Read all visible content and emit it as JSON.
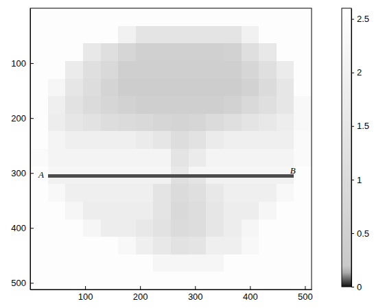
{
  "chart_data": {
    "type": "heatmap",
    "x_edges": [
      0,
      32,
      64,
      96,
      128,
      160,
      192,
      224,
      256,
      288,
      320,
      352,
      384,
      416,
      448,
      480,
      512
    ],
    "y_edges": [
      0,
      32,
      64,
      96,
      128,
      160,
      192,
      224,
      256,
      288,
      302,
      308,
      320,
      352,
      384,
      416,
      448,
      480,
      512
    ],
    "cells": [
      [
        2.5,
        2.5,
        2.5,
        2.5,
        2.5,
        2.5,
        2.5,
        2.5,
        2.5,
        2.5,
        2.5,
        2.5,
        2.5,
        2.5,
        2.5,
        2.5
      ],
      [
        2.5,
        2.5,
        2.5,
        2.5,
        2.5,
        2.0,
        1.4,
        1.4,
        1.4,
        1.4,
        1.4,
        1.4,
        2.0,
        2.5,
        2.5,
        2.5
      ],
      [
        2.5,
        2.5,
        2.5,
        1.6,
        1.2,
        0.8,
        0.5,
        0.5,
        0.5,
        0.5,
        0.5,
        0.6,
        1.2,
        1.6,
        2.5,
        2.5
      ],
      [
        2.5,
        2.5,
        1.7,
        1.2,
        0.9,
        0.45,
        0.45,
        0.45,
        0.45,
        0.45,
        0.45,
        0.45,
        0.8,
        1.2,
        1.7,
        2.5
      ],
      [
        2.5,
        2.2,
        1.5,
        1.1,
        0.7,
        0.4,
        0.4,
        0.4,
        0.4,
        0.4,
        0.4,
        0.4,
        0.6,
        1.0,
        1.5,
        2.5
      ],
      [
        2.5,
        1.9,
        1.3,
        1.0,
        0.8,
        0.6,
        0.45,
        0.45,
        0.45,
        0.45,
        0.45,
        0.6,
        0.9,
        1.2,
        1.5,
        2.3
      ],
      [
        2.5,
        1.8,
        1.5,
        1.3,
        1.1,
        1.0,
        0.9,
        0.8,
        0.7,
        0.8,
        1.0,
        1.2,
        1.4,
        1.6,
        1.8,
        2.3
      ],
      [
        2.5,
        2.1,
        1.9,
        1.9,
        1.9,
        1.9,
        1.7,
        1.5,
        1.1,
        1.3,
        1.7,
        1.9,
        1.9,
        1.9,
        1.9,
        2.4
      ],
      [
        2.4,
        2.1,
        2.1,
        2.1,
        2.1,
        2.1,
        2.1,
        2.1,
        1.4,
        1.7,
        2.1,
        2.1,
        2.1,
        2.1,
        2.1,
        2.4
      ],
      [
        2.5,
        2.2,
        2.2,
        2.2,
        2.2,
        2.2,
        2.2,
        2.2,
        1.6,
        2.2,
        2.2,
        2.2,
        2.2,
        2.2,
        2.2,
        2.5
      ],
      [
        2.5,
        0.05,
        0.05,
        0.05,
        0.05,
        0.05,
        0.05,
        0.05,
        0.05,
        0.05,
        0.05,
        0.05,
        0.05,
        0.05,
        0.05,
        2.5
      ],
      [
        2.5,
        2.0,
        2.0,
        2.0,
        2.0,
        2.0,
        2.0,
        2.0,
        1.2,
        1.4,
        2.0,
        2.0,
        2.0,
        2.0,
        2.0,
        2.5
      ],
      [
        2.5,
        2.3,
        1.9,
        1.9,
        1.9,
        1.9,
        1.9,
        1.4,
        1.0,
        1.2,
        1.6,
        1.9,
        1.9,
        1.9,
        2.3,
        2.5
      ],
      [
        2.5,
        2.5,
        2.2,
        1.8,
        1.8,
        1.8,
        1.8,
        1.4,
        0.9,
        1.1,
        1.5,
        1.8,
        1.8,
        2.2,
        2.5,
        2.5
      ],
      [
        2.5,
        2.5,
        2.5,
        2.2,
        1.8,
        1.8,
        1.6,
        1.3,
        1.0,
        1.1,
        1.5,
        1.8,
        2.2,
        2.5,
        2.5,
        2.5
      ],
      [
        2.5,
        2.5,
        2.5,
        2.5,
        2.5,
        2.3,
        1.9,
        1.6,
        1.3,
        1.4,
        1.9,
        1.9,
        2.3,
        2.5,
        2.5,
        2.5
      ],
      [
        2.5,
        2.5,
        2.5,
        2.5,
        2.5,
        2.5,
        2.5,
        2.2,
        2.2,
        2.2,
        2.2,
        2.5,
        2.5,
        2.5,
        2.5,
        2.5
      ],
      [
        2.5,
        2.5,
        2.5,
        2.5,
        2.5,
        2.5,
        2.5,
        2.5,
        2.5,
        2.5,
        2.5,
        2.5,
        2.5,
        2.5,
        2.5,
        2.5
      ]
    ],
    "xlim": [
      0,
      512
    ],
    "ylim": [
      0,
      512
    ],
    "xticks": [
      100,
      200,
      300,
      400,
      500
    ],
    "yticks": [
      100,
      200,
      300,
      400,
      500
    ],
    "colorbar": {
      "range": [
        0,
        2.6
      ],
      "ticks": [
        0,
        0.5,
        1,
        1.5,
        2,
        2.5
      ]
    },
    "annotations": [
      {
        "text": "A",
        "x": 20,
        "y": 305
      },
      {
        "text": "B",
        "x": 478,
        "y": 297
      }
    ]
  }
}
